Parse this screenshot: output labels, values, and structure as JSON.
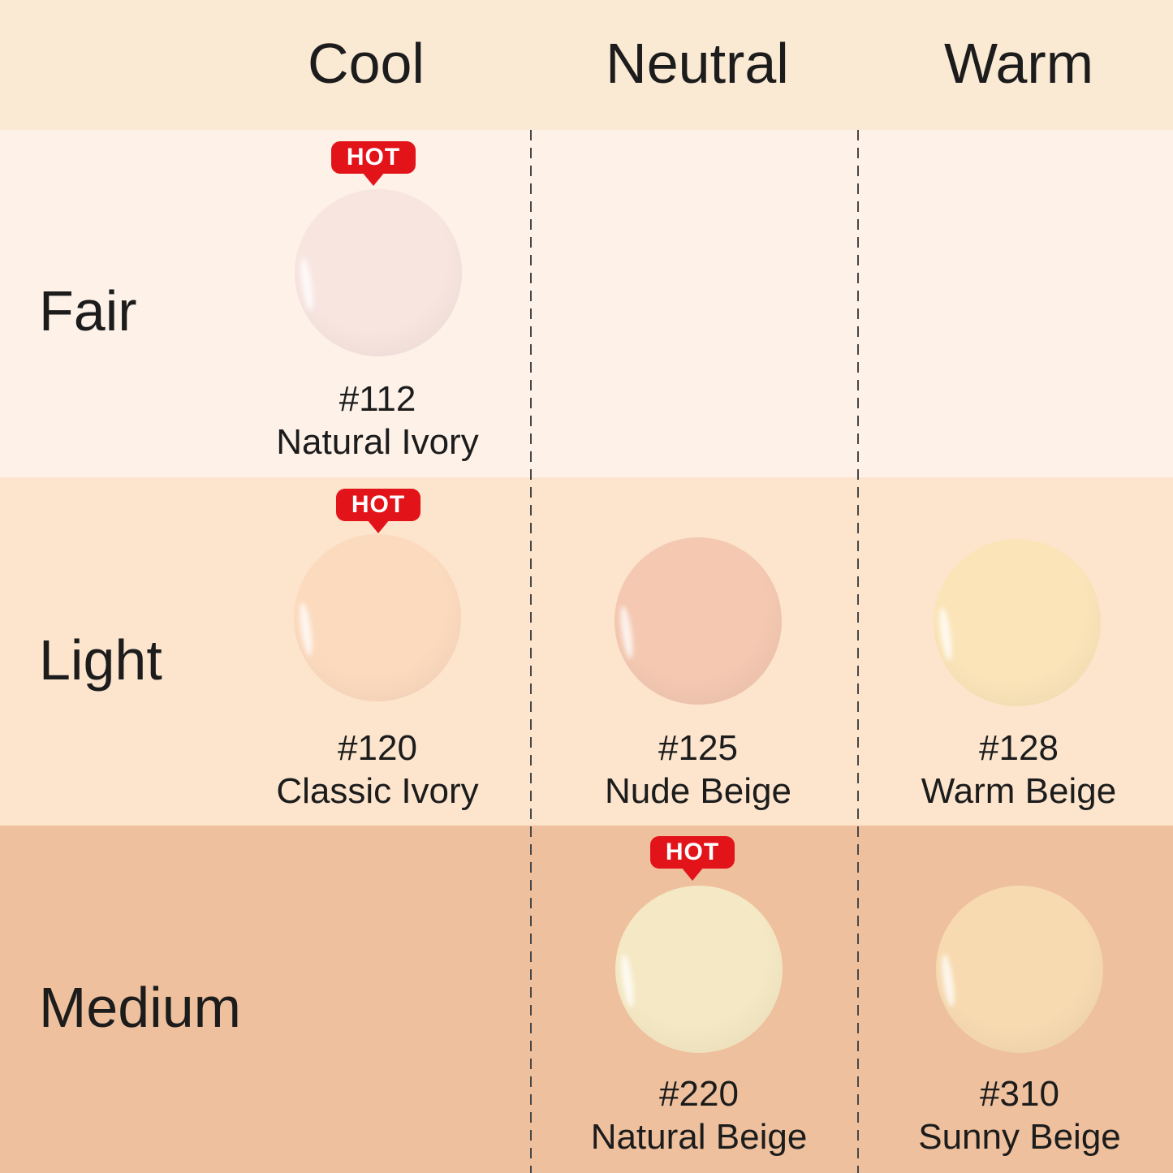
{
  "badge": {
    "label": "HOT"
  },
  "colors": {
    "header_bg": "#fae9d3",
    "fair_bg": "#fdf1e8",
    "light_bg": "#fce4cd",
    "medium_bg": "#eec09d",
    "hot_red": "#e2141a",
    "text": "#1c1c1c",
    "dash": "#474747"
  },
  "swatches": [
    {
      "row": "Fair",
      "column": "Cool",
      "code": "#112",
      "name": "Natural Ivory",
      "hot": true,
      "color": "#f8e5e0"
    },
    {
      "row": "Light",
      "column": "Cool",
      "code": "#120",
      "name": "Classic Ivory",
      "hot": true,
      "color": "#fcdabe"
    },
    {
      "row": "Light",
      "column": "Neutral",
      "code": "#125",
      "name": "Nude Beige",
      "hot": false,
      "color": "#f4c8b1"
    },
    {
      "row": "Light",
      "column": "Warm",
      "code": "#128",
      "name": "Warm Beige",
      "hot": false,
      "color": "#fbe4b8"
    },
    {
      "row": "Medium",
      "column": "Neutral",
      "code": "#220",
      "name": "Natural Beige",
      "hot": true,
      "color": "#f5e8c4"
    },
    {
      "row": "Medium",
      "column": "Warm",
      "code": "#310",
      "name": "Sunny Beige",
      "hot": false,
      "color": "#f7dab0"
    }
  ],
  "chart_data": {
    "type": "table",
    "title": "",
    "columns": [
      "Cool",
      "Neutral",
      "Warm"
    ],
    "rows": [
      "Fair",
      "Light",
      "Medium"
    ],
    "cells": [
      {
        "row": "Fair",
        "column": "Cool",
        "code": "#112",
        "name": "Natural Ivory",
        "hot": true,
        "swatch_color": "#f8e5e0"
      },
      {
        "row": "Fair",
        "column": "Neutral",
        "empty": true
      },
      {
        "row": "Fair",
        "column": "Warm",
        "empty": true
      },
      {
        "row": "Light",
        "column": "Cool",
        "code": "#120",
        "name": "Classic Ivory",
        "hot": true,
        "swatch_color": "#fcdabe"
      },
      {
        "row": "Light",
        "column": "Neutral",
        "code": "#125",
        "name": "Nude Beige",
        "hot": false,
        "swatch_color": "#f4c8b1"
      },
      {
        "row": "Light",
        "column": "Warm",
        "code": "#128",
        "name": "Warm Beige",
        "hot": false,
        "swatch_color": "#fbe4b8"
      },
      {
        "row": "Medium",
        "column": "Cool",
        "empty": true
      },
      {
        "row": "Medium",
        "column": "Neutral",
        "code": "#220",
        "name": "Natural Beige",
        "hot": true,
        "swatch_color": "#f5e8c4"
      },
      {
        "row": "Medium",
        "column": "Warm",
        "code": "#310",
        "name": "Sunny Beige",
        "hot": false,
        "swatch_color": "#f7dab0"
      }
    ],
    "layout": {
      "row_band_colors": [
        "#fdf1e8",
        "#fce4cd",
        "#eec09d"
      ],
      "header_band_color": "#fae9d3",
      "column_dividers": "dashed"
    }
  }
}
